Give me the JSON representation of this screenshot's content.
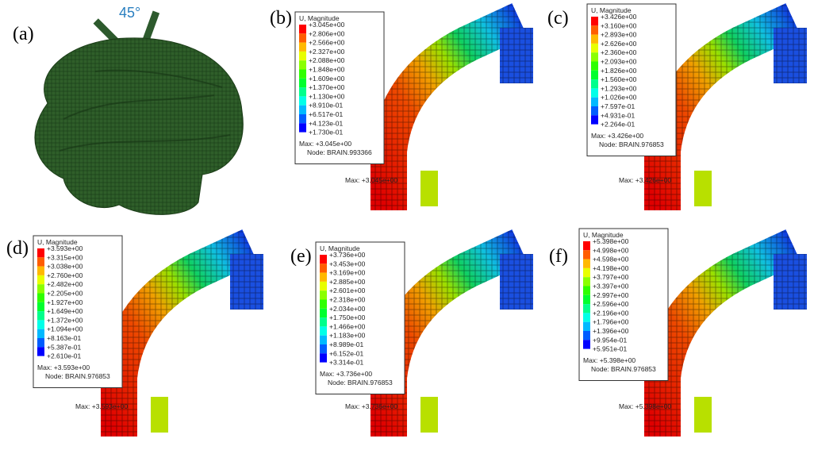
{
  "panels": [
    {
      "label": "(a)",
      "angle": "45°"
    },
    {
      "label": "(b)",
      "legend_title": "U, Magnitude",
      "legend_values": [
        "+3.045e+00",
        "+2.806e+00",
        "+2.566e+00",
        "+2.327e+00",
        "+2.088e+00",
        "+1.848e+00",
        "+1.609e+00",
        "+1.370e+00",
        "+1.130e+00",
        "+8.910e-01",
        "+6.517e-01",
        "+4.123e-01",
        "+1.730e-01"
      ],
      "max": "Max: +3.045e+00",
      "node": "Node: BRAIN.993366"
    },
    {
      "label": "(c)",
      "legend_title": "U, Magnitude",
      "legend_values": [
        "+3.426e+00",
        "+3.160e+00",
        "+2.893e+00",
        "+2.626e+00",
        "+2.360e+00",
        "+2.093e+00",
        "+1.826e+00",
        "+1.560e+00",
        "+1.293e+00",
        "+1.026e+00",
        "+7.597e-01",
        "+4.931e-01",
        "+2.264e-01"
      ],
      "max": "Max: +3.426e+00",
      "node": "Node: BRAIN.976853"
    },
    {
      "label": "(d)",
      "legend_title": "U, Magnitude",
      "legend_values": [
        "+3.593e+00",
        "+3.315e+00",
        "+3.038e+00",
        "+2.760e+00",
        "+2.482e+00",
        "+2.205e+00",
        "+1.927e+00",
        "+1.649e+00",
        "+1.372e+00",
        "+1.094e+00",
        "+8.163e-01",
        "+5.387e-01",
        "+2.610e-01"
      ],
      "max": "Max: +3.593e+00",
      "node": "Node: BRAIN.976853"
    },
    {
      "label": "(e)",
      "legend_title": "U, Magnitude",
      "legend_values": [
        "+3.736e+00",
        "+3.453e+00",
        "+3.169e+00",
        "+2.885e+00",
        "+2.601e+00",
        "+2.318e+00",
        "+2.034e+00",
        "+1.750e+00",
        "+1.466e+00",
        "+1.183e+00",
        "+8.989e-01",
        "+6.152e-01",
        "+3.314e-01"
      ],
      "max": "Max: +3.736e+00",
      "node": "Node: BRAIN.976853"
    },
    {
      "label": "(f)",
      "legend_title": "U, Magnitude",
      "legend_values": [
        "+5.398e+00",
        "+4.998e+00",
        "+4.598e+00",
        "+4.198e+00",
        "+3.797e+00",
        "+3.397e+00",
        "+2.997e+00",
        "+2.596e+00",
        "+2.196e+00",
        "+1.796e+00",
        "+1.396e+00",
        "+9.954e-01",
        "+5.951e-01"
      ],
      "max": "Max: +5.398e+00",
      "node": "Node: BRAIN.976853"
    }
  ]
}
